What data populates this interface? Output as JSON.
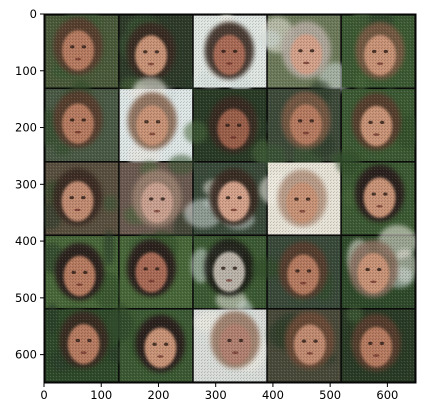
{
  "figure": {
    "image_description_kind": "grid of generated face samples",
    "grid": {
      "rows": 5,
      "cols": 5
    },
    "axes": {
      "x": {
        "range": [
          0,
          650
        ],
        "ticks": [
          0,
          100,
          200,
          300,
          400,
          500,
          600
        ],
        "tick_labels": [
          "0",
          "100",
          "200",
          "300",
          "400",
          "500",
          "600"
        ]
      },
      "y": {
        "range": [
          0,
          650
        ],
        "inverted": true,
        "ticks": [
          0,
          100,
          200,
          300,
          400,
          500,
          600
        ],
        "tick_labels": [
          "0",
          "100",
          "200",
          "300",
          "400",
          "500",
          "600"
        ]
      }
    },
    "colors": {
      "background": "#ffffff",
      "separator": "#0a0a0a",
      "greens": [
        "#2f4a2a",
        "#3c5a33",
        "#49683a",
        "#2a3b26"
      ],
      "skins": [
        "#b57a5f",
        "#c79274",
        "#a86a55",
        "#d3a089",
        "#9a5e4a"
      ],
      "hairs": [
        "#3b2a22",
        "#5a3e2e",
        "#2c1f1a",
        "#6e4c38"
      ],
      "lights": [
        "#e8e4dc",
        "#cfdad8",
        "#f0ece4"
      ]
    }
  },
  "tiles": [
    {
      "bg": "#4a5a3a",
      "skin": "#b57a5f",
      "hair": "#5a3e2e",
      "light": false
    },
    {
      "bg": "#2f3b2a",
      "skin": "#c79274",
      "hair": "#3b2a22",
      "light": false
    },
    {
      "bg": "#dfe6e2",
      "skin": "#a86a55",
      "hair": "#3b2a22",
      "light": true
    },
    {
      "bg": "#6d7a5a",
      "skin": "#d3a089",
      "hair": "#b4aaa0",
      "light": true
    },
    {
      "bg": "#3c5a33",
      "skin": "#c79274",
      "hair": "#7a5a44",
      "light": false
    },
    {
      "bg": "#4a5a45",
      "skin": "#b57a5f",
      "hair": "#5a3e2e",
      "light": false
    },
    {
      "bg": "#dde5e5",
      "skin": "#c79274",
      "hair": "#8a6a55",
      "light": true
    },
    {
      "bg": "#2a3b26",
      "skin": "#9a5e4a",
      "hair": "#3b2a22",
      "light": false
    },
    {
      "bg": "#3e4a3a",
      "skin": "#b57a5f",
      "hair": "#7a5a44",
      "light": false
    },
    {
      "bg": "#3c5a33",
      "skin": "#c79274",
      "hair": "#5a3e2e",
      "light": false
    },
    {
      "bg": "#5a5040",
      "skin": "#c08a70",
      "hair": "#3b2a22",
      "light": false
    },
    {
      "bg": "#6a5a50",
      "skin": "#c9a090",
      "hair": "#9a8070",
      "light": false
    },
    {
      "bg": "#3a4a3a",
      "skin": "#d3a089",
      "hair": "#3b2a22",
      "light": true
    },
    {
      "bg": "#e6e2d6",
      "skin": "#c79274",
      "hair": "#b49480",
      "light": true
    },
    {
      "bg": "#3c5a33",
      "skin": "#c79274",
      "hair": "#2c1f1a",
      "light": false
    },
    {
      "bg": "#49683a",
      "skin": "#b57a5f",
      "hair": "#2c1f1a",
      "light": false
    },
    {
      "bg": "#49683a",
      "skin": "#a86a55",
      "hair": "#2c1f1a",
      "light": false
    },
    {
      "bg": "#3c5a33",
      "skin": "#b9b2a8",
      "hair": "#1f1a16",
      "light": true
    },
    {
      "bg": "#3a4a3a",
      "skin": "#b57a5f",
      "hair": "#5a3e2e",
      "light": false
    },
    {
      "bg": "#2f4a2a",
      "skin": "#c79274",
      "hair": "#8a7060",
      "light": true
    },
    {
      "bg": "#2f4a2a",
      "skin": "#b57a5f",
      "hair": "#3b2a22",
      "light": false
    },
    {
      "bg": "#3c5a33",
      "skin": "#c79274",
      "hair": "#2c1f1a",
      "light": false
    },
    {
      "bg": "#d8dcd8",
      "skin": "#b08070",
      "hair": "#9a7a66",
      "light": true
    },
    {
      "bg": "#4a4a3a",
      "skin": "#c08a70",
      "hair": "#6e4c38",
      "light": false
    },
    {
      "bg": "#2a3b26",
      "skin": "#b57a5f",
      "hair": "#5a3e2e",
      "light": false
    }
  ]
}
